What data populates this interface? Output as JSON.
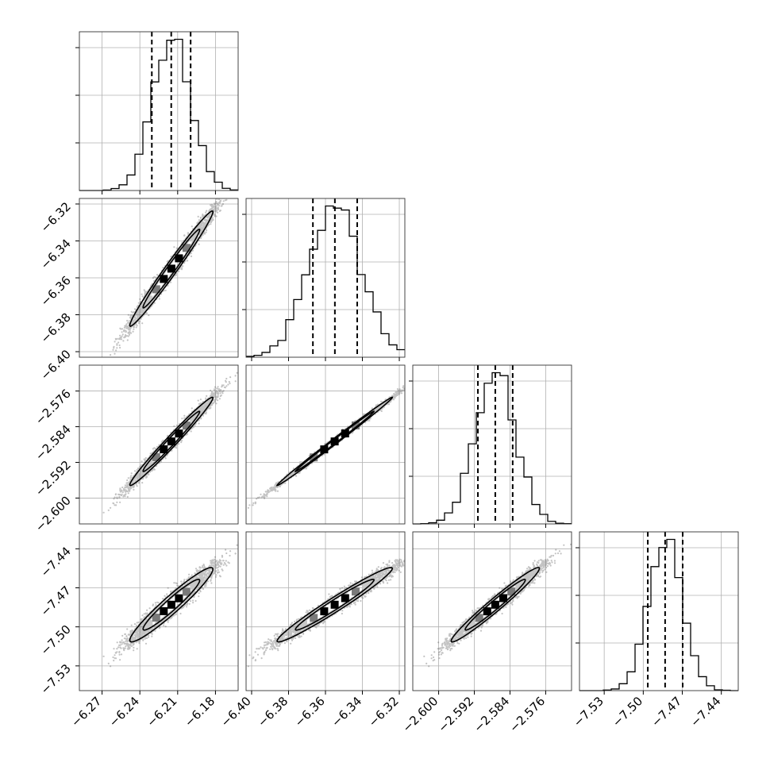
{
  "chart_data": {
    "type": "corner",
    "labels": [
      "",
      "",
      "",
      ""
    ],
    "parameters": [
      {
        "mean": -6.215,
        "sd": 0.015,
        "quantiles": [
          -6.2305,
          -6.2151,
          -6.1997
        ],
        "range": [
          -6.288,
          -6.162
        ],
        "ticks": [
          -6.27,
          -6.24,
          -6.21,
          -6.18
        ],
        "tick_labels": [
          "−6.27",
          "−6.24",
          "−6.21",
          "−6.18"
        ]
      },
      {
        "mean": -6.355,
        "sd": 0.0142,
        "quantiles": [
          -6.3668,
          -6.3549,
          -6.3428
        ],
        "range": [
          -6.403,
          -6.317
        ],
        "ticks": [
          -6.4,
          -6.38,
          -6.36,
          -6.34,
          -6.32
        ],
        "tick_labels": [
          "−6.40",
          "−6.38",
          "−6.36",
          "−6.34",
          "−6.32"
        ]
      },
      {
        "mean": -2.5873,
        "sd": 0.0045,
        "quantiles": [
          -2.5912,
          -2.5873,
          -2.5834
        ],
        "range": [
          -2.6058,
          -2.5702
        ],
        "ticks": [
          -2.6,
          -2.592,
          -2.584,
          -2.576
        ],
        "tick_labels": [
          "−2.600",
          "−2.592",
          "−2.584",
          "−2.576"
        ]
      },
      {
        "mean": -7.483,
        "sd": 0.013,
        "quantiles": [
          -7.4965,
          -7.4832,
          -7.4697
        ],
        "range": [
          -7.549,
          -7.427
        ],
        "ticks": [
          -7.53,
          -7.5,
          -7.47,
          -7.44
        ],
        "tick_labels": [
          "−7.53",
          "−7.50",
          "−7.47",
          "−7.44"
        ]
      }
    ],
    "correlations": [
      [
        1.0,
        0.985,
        0.985,
        0.955
      ],
      [
        0.985,
        1.0,
        0.997,
        0.975
      ],
      [
        0.985,
        0.997,
        1.0,
        0.975
      ],
      [
        0.955,
        0.975,
        0.975,
        1.0
      ]
    ],
    "histogram_bins": 20,
    "quantile_levels": [
      0.16,
      0.5,
      0.84
    ],
    "grid": true,
    "colors": {
      "line": "#000000",
      "frame": "#333333",
      "grid": "#b0b0b0",
      "points": "#555555"
    }
  }
}
